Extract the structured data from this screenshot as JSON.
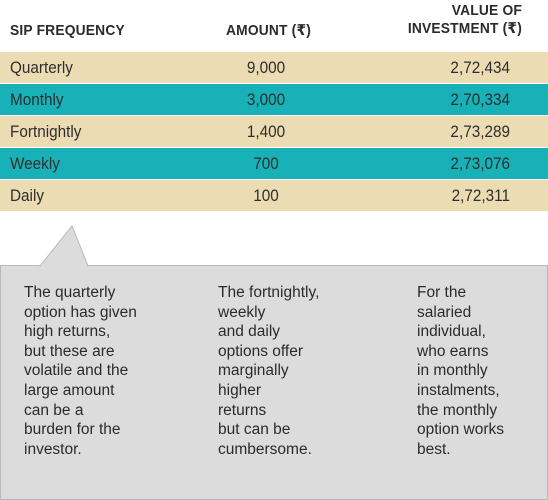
{
  "table": {
    "headers": {
      "frequency": "SIP FREQUENCY",
      "amount": "AMOUNT (₹)",
      "value_line1": "VALUE OF",
      "value_line2": "INVESTMENT (₹)"
    },
    "rows": [
      {
        "frequency": "Quarterly",
        "amount": "9,000",
        "value": "2,72,434",
        "shade": "beige"
      },
      {
        "frequency": "Monthly",
        "amount": "3,000",
        "value": "2,70,334",
        "shade": "teal"
      },
      {
        "frequency": "Fortnightly",
        "amount": "1,400",
        "value": "2,73,289",
        "shade": "beige"
      },
      {
        "frequency": "Weekly",
        "amount": "700",
        "value": "2,73,076",
        "shade": "teal"
      },
      {
        "frequency": "Daily",
        "amount": "100",
        "value": "2,72,311",
        "shade": "beige"
      }
    ]
  },
  "notes": [
    "The quarterly\noption has given\nhigh returns,\nbut these are\nvolatile and the\nlarge amount\ncan be a\nburden for the\ninvestor.",
    "The fortnightly,\nweekly\nand daily\noptions offer\nmarginally\nhigher\nreturns\nbut can be\ncumbersome.",
    "For the\nsalaried\nindividual,\nwho earns\nin monthly\ninstalments,\nthe monthly\noption works\nbest."
  ],
  "colors": {
    "beige_row": "#ecdcb4",
    "teal_row": "#17b1b7",
    "callout_bg": "#dcdcdc"
  }
}
